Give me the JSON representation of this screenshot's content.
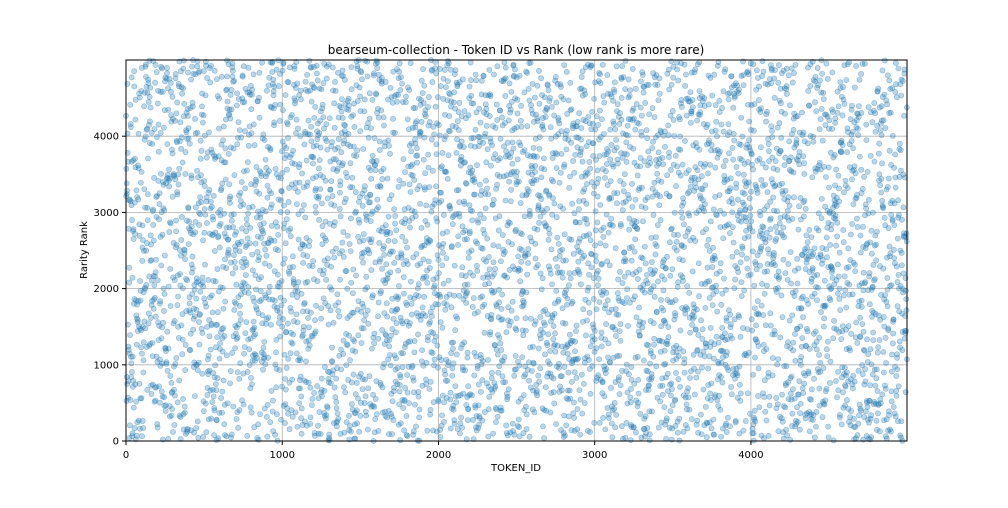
{
  "chart_data": {
    "type": "scatter",
    "title": "bearseum-collection - Token ID vs Rank (low rank is more rare)",
    "xlabel": "TOKEN_ID",
    "ylabel": "Rarity Rank",
    "xlim": [
      0,
      4999
    ],
    "ylim": [
      0,
      5000
    ],
    "x_ticks": [
      0,
      1000,
      2000,
      3000,
      4000
    ],
    "y_ticks": [
      0,
      1000,
      2000,
      3000,
      4000
    ],
    "x_tick_labels": [
      "0",
      "1000",
      "2000",
      "3000",
      "4000"
    ],
    "y_tick_labels": [
      "0",
      "1000",
      "2000",
      "3000",
      "4000"
    ],
    "grid": true,
    "legend": "none",
    "marker_color": "#1f77b4",
    "marker_alpha": 0.3,
    "point_count": 5000,
    "distribution": "uniform random: every TOKEN_ID from 0 to 4999 has one rank between 1 and 5000"
  }
}
